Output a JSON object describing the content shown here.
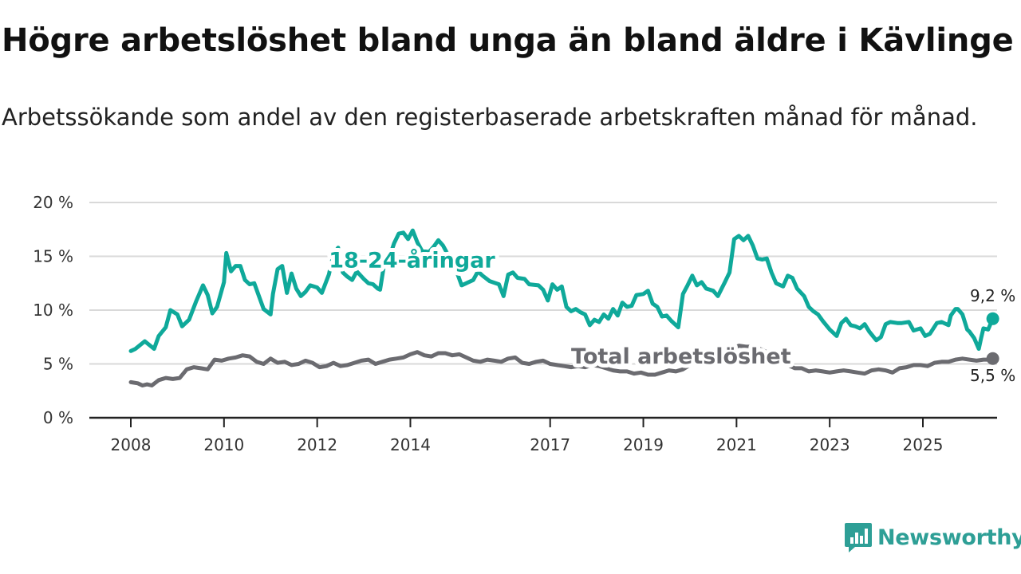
{
  "header": {
    "title": "Högre arbetslöshet bland unga än bland äldre i Kävlinge",
    "subtitle": "Arbetssökande som andel av den registerbaserade arbetskraften månad för månad."
  },
  "brand": {
    "name": "Newsworthy"
  },
  "colors": {
    "young": "#0fa99a",
    "total": "#6b6b70",
    "grid": "#d9d9d9",
    "axis": "#222222",
    "brand": "#2e9f96"
  },
  "chart_data": {
    "type": "line",
    "title": "Högre arbetslöshet bland unga än bland äldre i Kävlinge",
    "subtitle": "Arbetssökande som andel av den registerbaserade arbetskraften månad för månad.",
    "x_range": [
      2008.0,
      2025.75
    ],
    "ylim": [
      0,
      20
    ],
    "y_ticks": [
      0,
      5,
      10,
      15,
      20
    ],
    "y_tick_labels": [
      "0 %",
      "5 %",
      "10 %",
      "15 %",
      "20 %"
    ],
    "x_ticks": [
      2008,
      2010,
      2012,
      2014,
      2017,
      2019,
      2021,
      2023,
      2025
    ],
    "x_tick_labels": [
      "2008",
      "2010",
      "2012",
      "2014",
      "2017",
      "2019",
      "2021",
      "2023",
      "2025"
    ],
    "grid": true,
    "series": [
      {
        "name": "18-24-åringar",
        "label": "18-24-åringar",
        "end_label": "9,2 %",
        "end_value": 9.2,
        "points": [
          [
            2008.0,
            6.2
          ],
          [
            2008.1,
            6.4
          ],
          [
            2008.3,
            7.1
          ],
          [
            2008.5,
            6.4
          ],
          [
            2008.6,
            7.6
          ],
          [
            2008.75,
            8.4
          ],
          [
            2008.85,
            10.0
          ],
          [
            2009.0,
            9.6
          ],
          [
            2009.1,
            8.5
          ],
          [
            2009.25,
            9.1
          ],
          [
            2009.4,
            10.8
          ],
          [
            2009.55,
            12.3
          ],
          [
            2009.65,
            11.4
          ],
          [
            2009.75,
            9.7
          ],
          [
            2009.85,
            10.3
          ],
          [
            2010.0,
            12.6
          ],
          [
            2010.05,
            15.3
          ],
          [
            2010.15,
            13.6
          ],
          [
            2010.25,
            14.1
          ],
          [
            2010.35,
            14.1
          ],
          [
            2010.45,
            12.8
          ],
          [
            2010.55,
            12.4
          ],
          [
            2010.65,
            12.5
          ],
          [
            2010.75,
            11.3
          ],
          [
            2010.85,
            10.1
          ],
          [
            2011.0,
            9.6
          ],
          [
            2011.05,
            11.5
          ],
          [
            2011.15,
            13.8
          ],
          [
            2011.25,
            14.1
          ],
          [
            2011.35,
            11.6
          ],
          [
            2011.45,
            13.4
          ],
          [
            2011.55,
            12.0
          ],
          [
            2011.65,
            11.3
          ],
          [
            2011.75,
            11.7
          ],
          [
            2011.85,
            12.3
          ],
          [
            2012.0,
            12.1
          ],
          [
            2012.1,
            11.6
          ],
          [
            2012.25,
            13.3
          ],
          [
            2012.35,
            15.2
          ],
          [
            2012.45,
            15.8
          ],
          [
            2012.55,
            13.5
          ],
          [
            2012.65,
            13.1
          ],
          [
            2012.75,
            12.8
          ],
          [
            2012.85,
            13.6
          ],
          [
            2013.0,
            12.9
          ],
          [
            2013.1,
            12.5
          ],
          [
            2013.2,
            12.4
          ],
          [
            2013.3,
            12.0
          ],
          [
            2013.35,
            11.9
          ],
          [
            2013.45,
            14.6
          ],
          [
            2013.55,
            14.9
          ],
          [
            2013.65,
            16.2
          ],
          [
            2013.75,
            17.1
          ],
          [
            2013.85,
            17.2
          ],
          [
            2013.95,
            16.6
          ],
          [
            2014.05,
            17.4
          ],
          [
            2014.15,
            16.3
          ],
          [
            2014.25,
            15.5
          ],
          [
            2014.4,
            15.4
          ],
          [
            2014.5,
            15.9
          ],
          [
            2014.6,
            16.5
          ],
          [
            2014.7,
            16.0
          ],
          [
            2014.8,
            15.2
          ],
          [
            2015.0,
            13.5
          ],
          [
            2015.1,
            12.3
          ],
          [
            2015.2,
            12.5
          ],
          [
            2015.35,
            12.8
          ],
          [
            2015.45,
            13.6
          ],
          [
            2015.55,
            13.2
          ],
          [
            2015.7,
            12.7
          ],
          [
            2015.9,
            12.4
          ],
          [
            2016.0,
            11.3
          ],
          [
            2016.1,
            13.3
          ],
          [
            2016.2,
            13.5
          ],
          [
            2016.3,
            13.0
          ],
          [
            2016.45,
            12.9
          ],
          [
            2016.55,
            12.4
          ],
          [
            2016.75,
            12.3
          ],
          [
            2016.85,
            11.9
          ],
          [
            2016.95,
            10.9
          ],
          [
            2017.05,
            12.4
          ],
          [
            2017.15,
            11.9
          ],
          [
            2017.25,
            12.2
          ],
          [
            2017.35,
            10.3
          ],
          [
            2017.45,
            9.9
          ],
          [
            2017.55,
            10.1
          ],
          [
            2017.65,
            9.8
          ],
          [
            2017.75,
            9.6
          ],
          [
            2017.85,
            8.6
          ],
          [
            2017.95,
            9.1
          ],
          [
            2018.05,
            8.9
          ],
          [
            2018.15,
            9.6
          ],
          [
            2018.25,
            9.2
          ],
          [
            2018.35,
            10.1
          ],
          [
            2018.45,
            9.5
          ],
          [
            2018.55,
            10.7
          ],
          [
            2018.65,
            10.3
          ],
          [
            2018.75,
            10.4
          ],
          [
            2018.85,
            11.4
          ],
          [
            2019.0,
            11.5
          ],
          [
            2019.1,
            11.8
          ],
          [
            2019.2,
            10.6
          ],
          [
            2019.3,
            10.3
          ],
          [
            2019.4,
            9.4
          ],
          [
            2019.5,
            9.5
          ],
          [
            2019.6,
            9.0
          ],
          [
            2019.75,
            8.4
          ],
          [
            2019.85,
            11.5
          ],
          [
            2019.95,
            12.3
          ],
          [
            2020.05,
            13.2
          ],
          [
            2020.15,
            12.3
          ],
          [
            2020.25,
            12.6
          ],
          [
            2020.35,
            12.0
          ],
          [
            2020.5,
            11.8
          ],
          [
            2020.6,
            11.3
          ],
          [
            2020.75,
            12.6
          ],
          [
            2020.85,
            13.5
          ],
          [
            2020.95,
            16.6
          ],
          [
            2021.05,
            16.9
          ],
          [
            2021.15,
            16.5
          ],
          [
            2021.25,
            16.9
          ],
          [
            2021.35,
            16.0
          ],
          [
            2021.45,
            14.8
          ],
          [
            2021.55,
            14.7
          ],
          [
            2021.65,
            14.8
          ],
          [
            2021.75,
            13.5
          ],
          [
            2021.85,
            12.5
          ],
          [
            2022.0,
            12.2
          ],
          [
            2022.1,
            13.2
          ],
          [
            2022.2,
            13.0
          ],
          [
            2022.3,
            12.0
          ],
          [
            2022.45,
            11.3
          ],
          [
            2022.55,
            10.3
          ],
          [
            2022.65,
            9.9
          ],
          [
            2022.75,
            9.6
          ],
          [
            2022.85,
            9.0
          ],
          [
            2023.0,
            8.2
          ],
          [
            2023.15,
            7.6
          ],
          [
            2023.25,
            8.8
          ],
          [
            2023.35,
            9.2
          ],
          [
            2023.45,
            8.6
          ],
          [
            2023.55,
            8.5
          ],
          [
            2023.65,
            8.3
          ],
          [
            2023.75,
            8.7
          ],
          [
            2023.85,
            8.0
          ],
          [
            2024.0,
            7.2
          ],
          [
            2024.1,
            7.5
          ],
          [
            2024.2,
            8.7
          ],
          [
            2024.3,
            8.9
          ],
          [
            2024.45,
            8.8
          ],
          [
            2024.55,
            8.8
          ],
          [
            2024.7,
            8.9
          ],
          [
            2024.8,
            8.1
          ],
          [
            2024.95,
            8.3
          ],
          [
            2025.05,
            7.6
          ],
          [
            2025.15,
            7.8
          ],
          [
            2025.3,
            8.8
          ],
          [
            2025.4,
            8.9
          ],
          [
            2025.55,
            8.6
          ],
          [
            2025.6,
            9.5
          ],
          [
            2025.7,
            10.1
          ],
          [
            2025.75,
            10.1
          ],
          [
            2025.85,
            9.6
          ],
          [
            2025.95,
            8.2
          ],
          [
            2026.0,
            8.0
          ],
          [
            2026.1,
            7.4
          ],
          [
            2026.2,
            6.4
          ],
          [
            2026.25,
            7.4
          ],
          [
            2026.3,
            8.3
          ],
          [
            2026.4,
            8.2
          ],
          [
            2026.5,
            9.2
          ]
        ]
      },
      {
        "name": "Total arbetslöshet",
        "label": "Total arbetslöshet",
        "end_label": "5,5 %",
        "end_value": 5.5,
        "points": [
          [
            2008.0,
            3.3
          ],
          [
            2008.15,
            3.2
          ],
          [
            2008.25,
            3.0
          ],
          [
            2008.35,
            3.1
          ],
          [
            2008.45,
            3.0
          ],
          [
            2008.6,
            3.5
          ],
          [
            2008.75,
            3.7
          ],
          [
            2008.9,
            3.6
          ],
          [
            2009.05,
            3.7
          ],
          [
            2009.2,
            4.5
          ],
          [
            2009.35,
            4.7
          ],
          [
            2009.5,
            4.6
          ],
          [
            2009.65,
            4.5
          ],
          [
            2009.8,
            5.4
          ],
          [
            2009.95,
            5.3
          ],
          [
            2010.1,
            5.5
          ],
          [
            2010.25,
            5.6
          ],
          [
            2010.4,
            5.8
          ],
          [
            2010.55,
            5.7
          ],
          [
            2010.7,
            5.2
          ],
          [
            2010.85,
            5.0
          ],
          [
            2011.0,
            5.5
          ],
          [
            2011.15,
            5.1
          ],
          [
            2011.3,
            5.2
          ],
          [
            2011.45,
            4.9
          ],
          [
            2011.6,
            5.0
          ],
          [
            2011.75,
            5.3
          ],
          [
            2011.9,
            5.1
          ],
          [
            2012.05,
            4.7
          ],
          [
            2012.2,
            4.8
          ],
          [
            2012.35,
            5.1
          ],
          [
            2012.5,
            4.8
          ],
          [
            2012.65,
            4.9
          ],
          [
            2012.8,
            5.1
          ],
          [
            2012.95,
            5.3
          ],
          [
            2013.1,
            5.4
          ],
          [
            2013.25,
            5.0
          ],
          [
            2013.4,
            5.2
          ],
          [
            2013.55,
            5.4
          ],
          [
            2013.7,
            5.5
          ],
          [
            2013.85,
            5.6
          ],
          [
            2014.0,
            5.9
          ],
          [
            2014.15,
            6.1
          ],
          [
            2014.3,
            5.8
          ],
          [
            2014.45,
            5.7
          ],
          [
            2014.6,
            6.0
          ],
          [
            2014.75,
            6.0
          ],
          [
            2014.9,
            5.8
          ],
          [
            2015.05,
            5.9
          ],
          [
            2015.2,
            5.6
          ],
          [
            2015.35,
            5.3
          ],
          [
            2015.5,
            5.2
          ],
          [
            2015.65,
            5.4
          ],
          [
            2015.8,
            5.3
          ],
          [
            2015.95,
            5.2
          ],
          [
            2016.1,
            5.5
          ],
          [
            2016.25,
            5.6
          ],
          [
            2016.4,
            5.1
          ],
          [
            2016.55,
            5.0
          ],
          [
            2016.7,
            5.2
          ],
          [
            2016.85,
            5.3
          ],
          [
            2017.0,
            5.0
          ],
          [
            2017.15,
            4.9
          ],
          [
            2017.3,
            4.8
          ],
          [
            2017.45,
            4.7
          ],
          [
            2017.6,
            4.8
          ],
          [
            2017.75,
            4.7
          ],
          [
            2017.9,
            4.9
          ],
          [
            2018.05,
            4.8
          ],
          [
            2018.2,
            4.6
          ],
          [
            2018.35,
            4.4
          ],
          [
            2018.5,
            4.3
          ],
          [
            2018.65,
            4.3
          ],
          [
            2018.8,
            4.1
          ],
          [
            2018.95,
            4.2
          ],
          [
            2019.1,
            4.0
          ],
          [
            2019.25,
            4.0
          ],
          [
            2019.4,
            4.2
          ],
          [
            2019.55,
            4.4
          ],
          [
            2019.7,
            4.3
          ],
          [
            2019.85,
            4.5
          ],
          [
            2020.0,
            4.9
          ],
          [
            2020.15,
            5.1
          ],
          [
            2020.3,
            5.3
          ],
          [
            2020.45,
            5.4
          ],
          [
            2020.6,
            5.6
          ],
          [
            2020.75,
            5.9
          ],
          [
            2020.9,
            6.4
          ],
          [
            2021.05,
            6.7
          ],
          [
            2021.2,
            6.6
          ],
          [
            2021.35,
            6.6
          ],
          [
            2021.5,
            6.4
          ],
          [
            2021.65,
            6.1
          ],
          [
            2021.8,
            5.6
          ],
          [
            2021.95,
            5.3
          ],
          [
            2022.1,
            4.9
          ],
          [
            2022.25,
            4.6
          ],
          [
            2022.4,
            4.6
          ],
          [
            2022.55,
            4.3
          ],
          [
            2022.7,
            4.4
          ],
          [
            2022.85,
            4.3
          ],
          [
            2023.0,
            4.2
          ],
          [
            2023.15,
            4.3
          ],
          [
            2023.3,
            4.4
          ],
          [
            2023.45,
            4.3
          ],
          [
            2023.6,
            4.2
          ],
          [
            2023.75,
            4.1
          ],
          [
            2023.9,
            4.4
          ],
          [
            2024.05,
            4.5
          ],
          [
            2024.2,
            4.4
          ],
          [
            2024.35,
            4.2
          ],
          [
            2024.5,
            4.6
          ],
          [
            2024.65,
            4.7
          ],
          [
            2024.8,
            4.9
          ],
          [
            2024.95,
            4.9
          ],
          [
            2025.1,
            4.8
          ],
          [
            2025.25,
            5.1
          ],
          [
            2025.4,
            5.2
          ],
          [
            2025.55,
            5.2
          ],
          [
            2025.7,
            5.4
          ],
          [
            2025.85,
            5.5
          ],
          [
            2026.0,
            5.4
          ],
          [
            2026.15,
            5.3
          ],
          [
            2026.3,
            5.4
          ],
          [
            2026.45,
            5.4
          ],
          [
            2026.5,
            5.5
          ]
        ]
      }
    ]
  }
}
